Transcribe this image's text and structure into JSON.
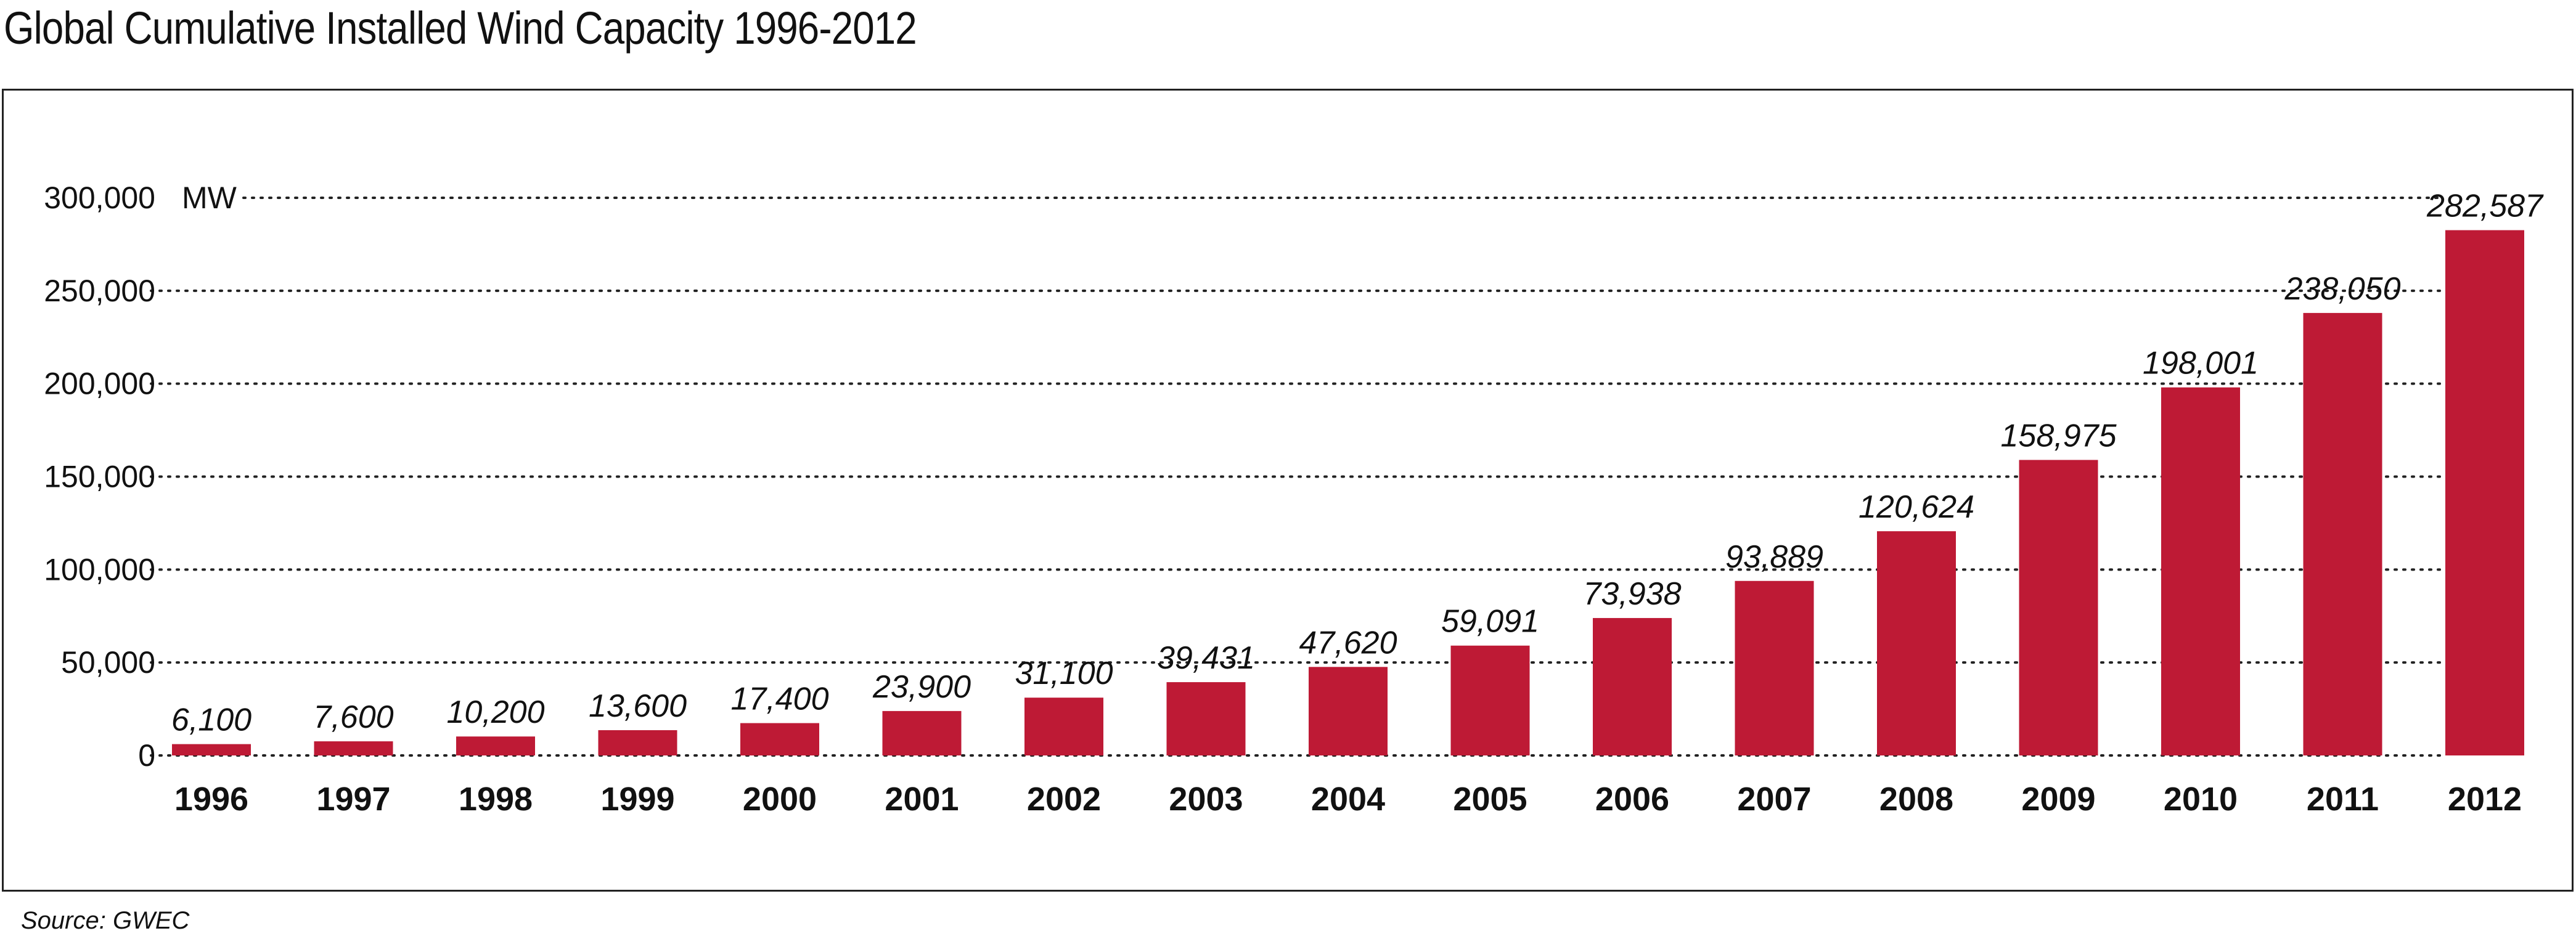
{
  "title": "Global Cumulative Installed Wind Capacity 1996-2012",
  "source": "Source: GWEC",
  "colors": {
    "bar": "#be1a35",
    "grid": "#222222"
  },
  "chart_data": {
    "type": "bar",
    "title": "Global Cumulative Installed Wind Capacity 1996-2012",
    "unit_label": "MW",
    "categories": [
      "1996",
      "1997",
      "1998",
      "1999",
      "2000",
      "2001",
      "2002",
      "2003",
      "2004",
      "2005",
      "2006",
      "2007",
      "2008",
      "2009",
      "2010",
      "2011",
      "2012"
    ],
    "values": [
      6100,
      7600,
      10200,
      13600,
      17400,
      23900,
      31100,
      39431,
      47620,
      59091,
      73938,
      93889,
      120624,
      158975,
      198001,
      238050,
      282587
    ],
    "value_labels": [
      "6,100",
      "7,600",
      "10,200",
      "13,600",
      "17,400",
      "23,900",
      "31,100",
      "39,431",
      "47,620",
      "59,091",
      "73,938",
      "93,889",
      "120,624",
      "158,975",
      "198,001",
      "238,050",
      "282,587"
    ],
    "yticks": [
      0,
      50000,
      100000,
      150000,
      200000,
      250000,
      300000
    ],
    "ytick_labels": [
      "0",
      "50,000",
      "100,000",
      "150,000",
      "200,000",
      "250,000",
      "300,000"
    ],
    "ylim": [
      0,
      300000
    ],
    "grid": "horizontal dotted",
    "legend": "none"
  }
}
